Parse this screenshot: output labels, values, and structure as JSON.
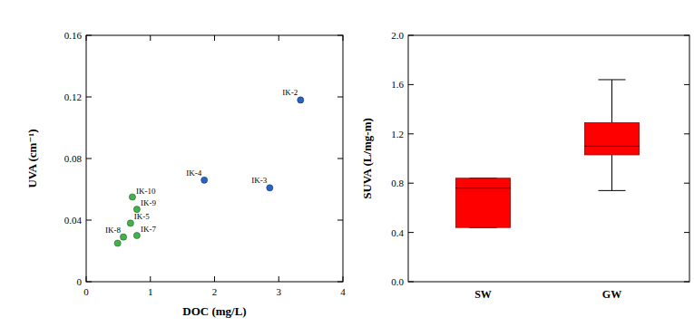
{
  "chart_data": [
    {
      "type": "scatter",
      "x_label": "DOC (mg/L)",
      "y_label": "UVA (cm⁻¹)",
      "xlim": [
        0,
        4
      ],
      "xticks": [
        0,
        1,
        2,
        3,
        4
      ],
      "ylim": [
        0,
        0.16
      ],
      "yticks": [
        0,
        0.04,
        0.08,
        0.12,
        0.16
      ],
      "series": [
        {
          "color": "#2563c9",
          "marker": "circle",
          "x": [
            3.34,
            1.84,
            2.86
          ],
          "values": [
            0.118,
            0.066,
            0.061
          ],
          "labels": [
            "IK-2",
            "IK-4",
            "IK-3"
          ]
        },
        {
          "color": "#3fb449",
          "marker": "circle",
          "x": [
            0.72,
            0.79,
            0.69,
            0.79,
            0.58,
            0.49
          ],
          "values": [
            0.055,
            0.047,
            0.038,
            0.03,
            0.029,
            0.025
          ],
          "labels": [
            "IK-10",
            "IK-9",
            "IK-5",
            "IK-7",
            "IK-8",
            null
          ]
        }
      ]
    },
    {
      "type": "box",
      "y_label": "SUVA (L/mg-m)",
      "categories": [
        "SW",
        "GW"
      ],
      "ylim": [
        0,
        2.0
      ],
      "yticks": [
        {
          "value": 0,
          "label": "0.0"
        },
        0.4,
        0.8,
        1.2,
        1.6,
        {
          "value": 2.0,
          "label": "2.0"
        }
      ],
      "color": "#ff0000",
      "min": [
        0.44,
        0.74
      ],
      "q1": [
        0.44,
        1.03
      ],
      "median": [
        0.76,
        1.1
      ],
      "q3": [
        0.84,
        1.29
      ],
      "max": [
        0.84,
        1.64
      ]
    }
  ]
}
